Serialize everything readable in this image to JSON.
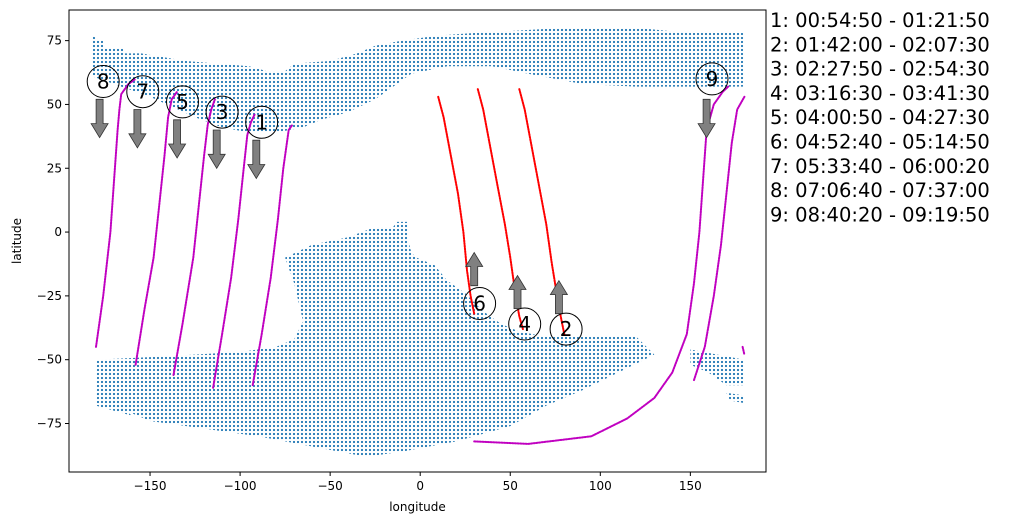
{
  "chart_data": {
    "type": "scatter",
    "title": "",
    "xlabel": "longitude",
    "ylabel": "latitude",
    "xlim": [
      -195,
      192
    ],
    "ylim": [
      -94,
      87
    ],
    "xticks": [
      -150,
      -100,
      -50,
      0,
      50,
      100,
      150
    ],
    "yticks": [
      -75,
      -50,
      -25,
      0,
      25,
      50,
      75
    ],
    "grid": false,
    "colors": {
      "land": "#1f77b4",
      "track_descending": "#c000c0",
      "track_ascending": "#ff0000",
      "arrow": "#808080"
    },
    "land_regions": [
      {
        "name": "northern",
        "poly": [
          [
            -182,
            77
          ],
          [
            -178,
            75
          ],
          [
            -176,
            75
          ],
          [
            -176,
            72
          ],
          [
            -165,
            72
          ],
          [
            -165,
            70
          ],
          [
            -160,
            70
          ],
          [
            -155,
            70
          ],
          [
            -130,
            67
          ],
          [
            -95,
            65
          ],
          [
            -85,
            63
          ],
          [
            -75,
            63
          ],
          [
            -70,
            66
          ],
          [
            -50,
            67
          ],
          [
            -35,
            70
          ],
          [
            -25,
            73
          ],
          [
            -10,
            75
          ],
          [
            10,
            77
          ],
          [
            30,
            78
          ],
          [
            80,
            80
          ],
          [
            120,
            80
          ],
          [
            150,
            78
          ],
          [
            180,
            78
          ],
          [
            180,
            57
          ],
          [
            150,
            57
          ],
          [
            120,
            57
          ],
          [
            90,
            58
          ],
          [
            60,
            62
          ],
          [
            40,
            65
          ],
          [
            15,
            65
          ],
          [
            -5,
            62
          ],
          [
            -15,
            57
          ],
          [
            -25,
            52
          ],
          [
            -40,
            47
          ],
          [
            -55,
            44
          ],
          [
            -65,
            41
          ],
          [
            -80,
            39
          ],
          [
            -95,
            39
          ],
          [
            -110,
            41
          ],
          [
            -125,
            45
          ],
          [
            -150,
            53
          ],
          [
            -170,
            58
          ],
          [
            -182,
            61
          ]
        ]
      },
      {
        "name": "southern",
        "poly": [
          [
            -180,
            -50
          ],
          [
            -150,
            -49
          ],
          [
            -100,
            -47
          ],
          [
            -80,
            -45
          ],
          [
            -70,
            -42
          ],
          [
            -65,
            -35
          ],
          [
            -70,
            -20
          ],
          [
            -75,
            -10
          ],
          [
            -60,
            -5
          ],
          [
            -40,
            -2
          ],
          [
            -25,
            2
          ],
          [
            -15,
            2
          ],
          [
            -13,
            4
          ],
          [
            -7,
            4
          ],
          [
            -7,
            -2
          ],
          [
            -5,
            -8
          ],
          [
            -2,
            -10
          ],
          [
            8,
            -13
          ],
          [
            15,
            -19
          ],
          [
            25,
            -24
          ],
          [
            35,
            -31
          ],
          [
            45,
            -36
          ],
          [
            55,
            -39
          ],
          [
            70,
            -41
          ],
          [
            90,
            -41
          ],
          [
            120,
            -41
          ],
          [
            130,
            -48
          ],
          [
            110,
            -55
          ],
          [
            90,
            -62
          ],
          [
            70,
            -68
          ],
          [
            50,
            -76
          ],
          [
            20,
            -82
          ],
          [
            -10,
            -86
          ],
          [
            -30,
            -88
          ],
          [
            -60,
            -84
          ],
          [
            -90,
            -80
          ],
          [
            -120,
            -77
          ],
          [
            -150,
            -74
          ],
          [
            -170,
            -68
          ],
          [
            -180,
            -64
          ]
        ]
      },
      {
        "name": "south-patch-west",
        "poly": [
          [
            -180,
            -63
          ],
          [
            -175,
            -66
          ],
          [
            -165,
            -69
          ],
          [
            -160,
            -72
          ],
          [
            -170,
            -70
          ],
          [
            -180,
            -68
          ]
        ]
      },
      {
        "name": "south-patch-east",
        "poly": [
          [
            150,
            -46
          ],
          [
            165,
            -48
          ],
          [
            180,
            -50
          ],
          [
            180,
            -60
          ],
          [
            170,
            -60
          ],
          [
            160,
            -55
          ],
          [
            150,
            -52
          ]
        ]
      },
      {
        "name": "south-patch-far-east",
        "poly": [
          [
            170,
            -63
          ],
          [
            180,
            -64
          ],
          [
            180,
            -67
          ],
          [
            172,
            -66
          ]
        ]
      }
    ],
    "descending_tracks": [
      {
        "id": "8",
        "points": [
          [
            -180,
            -45
          ],
          [
            -176,
            -25
          ],
          [
            -172,
            0
          ],
          [
            -170,
            20
          ],
          [
            -168,
            40
          ],
          [
            -167,
            48
          ],
          [
            -166,
            54
          ],
          [
            -162,
            58
          ],
          [
            -158,
            60
          ]
        ]
      },
      {
        "id": "7",
        "points": [
          [
            -158,
            -52
          ],
          [
            -153,
            -30
          ],
          [
            -148,
            -10
          ],
          [
            -145,
            10
          ],
          [
            -142,
            30
          ],
          [
            -140,
            45
          ],
          [
            -138,
            52
          ],
          [
            -135,
            55
          ]
        ]
      },
      {
        "id": "5",
        "points": [
          [
            -137,
            -56
          ],
          [
            -132,
            -36
          ],
          [
            -126,
            -10
          ],
          [
            -123,
            10
          ],
          [
            -120,
            30
          ],
          [
            -118,
            42
          ],
          [
            -116,
            48
          ],
          [
            -114,
            52
          ]
        ]
      },
      {
        "id": "3",
        "points": [
          [
            -115,
            -61
          ],
          [
            -110,
            -40
          ],
          [
            -105,
            -18
          ],
          [
            -101,
            5
          ],
          [
            -98,
            25
          ],
          [
            -96,
            38
          ],
          [
            -94,
            43
          ],
          [
            -92,
            46
          ]
        ]
      },
      {
        "id": "1",
        "points": [
          [
            -93,
            -60
          ],
          [
            -88,
            -40
          ],
          [
            -83,
            -18
          ],
          [
            -79,
            5
          ],
          [
            -76,
            25
          ],
          [
            -74,
            35
          ],
          [
            -73,
            40
          ],
          [
            -71,
            42
          ]
        ]
      },
      {
        "id": "9",
        "points": [
          [
            30,
            -82
          ],
          [
            60,
            -83
          ],
          [
            95,
            -80
          ],
          [
            115,
            -73
          ],
          [
            130,
            -65
          ],
          [
            140,
            -55
          ],
          [
            148,
            -40
          ],
          [
            152,
            -20
          ],
          [
            155,
            0
          ],
          [
            157,
            20
          ],
          [
            159,
            40
          ],
          [
            163,
            50
          ],
          [
            168,
            55
          ],
          [
            171,
            57
          ]
        ]
      },
      {
        "id": "9b",
        "points": [
          [
            152,
            -58
          ],
          [
            158,
            -45
          ],
          [
            163,
            -25
          ],
          [
            167,
            -5
          ],
          [
            170,
            15
          ],
          [
            173,
            35
          ],
          [
            176,
            48
          ],
          [
            180,
            53
          ]
        ]
      },
      {
        "id": "9c",
        "points": [
          [
            179,
            -45
          ],
          [
            180,
            -48
          ]
        ]
      }
    ],
    "ascending_tracks": [
      {
        "id": "6",
        "points": [
          [
            10,
            53
          ],
          [
            13,
            45
          ],
          [
            17,
            30
          ],
          [
            21,
            15
          ],
          [
            24,
            0
          ],
          [
            26,
            -15
          ],
          [
            28,
            -25
          ],
          [
            30,
            -32
          ]
        ]
      },
      {
        "id": "4",
        "points": [
          [
            32,
            56
          ],
          [
            35,
            48
          ],
          [
            39,
            33
          ],
          [
            43,
            18
          ],
          [
            47,
            3
          ],
          [
            50,
            -10
          ],
          [
            53,
            -25
          ],
          [
            55,
            -33
          ],
          [
            57,
            -38
          ]
        ]
      },
      {
        "id": "2",
        "points": [
          [
            55,
            56
          ],
          [
            58,
            48
          ],
          [
            62,
            33
          ],
          [
            66,
            18
          ],
          [
            70,
            3
          ],
          [
            73,
            -12
          ],
          [
            76,
            -25
          ],
          [
            78,
            -33
          ],
          [
            80,
            -40
          ]
        ]
      }
    ],
    "markers": [
      {
        "label": "8",
        "x": -176,
        "y": 59
      },
      {
        "label": "7",
        "x": -154,
        "y": 55
      },
      {
        "label": "5",
        "x": -132,
        "y": 51
      },
      {
        "label": "3",
        "x": -110,
        "y": 47
      },
      {
        "label": "1",
        "x": -88,
        "y": 43
      },
      {
        "label": "9",
        "x": 162,
        "y": 60
      },
      {
        "label": "6",
        "x": 33,
        "y": -28
      },
      {
        "label": "4",
        "x": 58,
        "y": -36
      },
      {
        "label": "2",
        "x": 81,
        "y": -38
      }
    ],
    "arrows": [
      {
        "x": -178,
        "y": 52,
        "dy": -15
      },
      {
        "x": -157,
        "y": 48,
        "dy": -15
      },
      {
        "x": -135,
        "y": 44,
        "dy": -15
      },
      {
        "x": -113,
        "y": 40,
        "dy": -15
      },
      {
        "x": -91,
        "y": 36,
        "dy": -15
      },
      {
        "x": 159,
        "y": 52,
        "dy": -15
      },
      {
        "x": 30,
        "y": -21,
        "dy": 13
      },
      {
        "x": 54,
        "y": -30,
        "dy": 13
      },
      {
        "x": 77,
        "y": -32,
        "dy": 13
      }
    ],
    "legend": {
      "placement": "right",
      "entries": [
        "1:  00:54:50 - 01:21:50",
        "2:  01:42:00 - 02:07:30",
        "3:  02:27:50 - 02:54:30",
        "4:  03:16:30 - 03:41:30",
        "5:  04:00:50 - 04:27:30",
        "6:  04:52:40 - 05:14:50",
        "7:  05:33:40 - 06:00:20",
        "8:  07:06:40 - 07:37:00",
        "9:  08:40:20 - 09:19:50"
      ]
    }
  }
}
